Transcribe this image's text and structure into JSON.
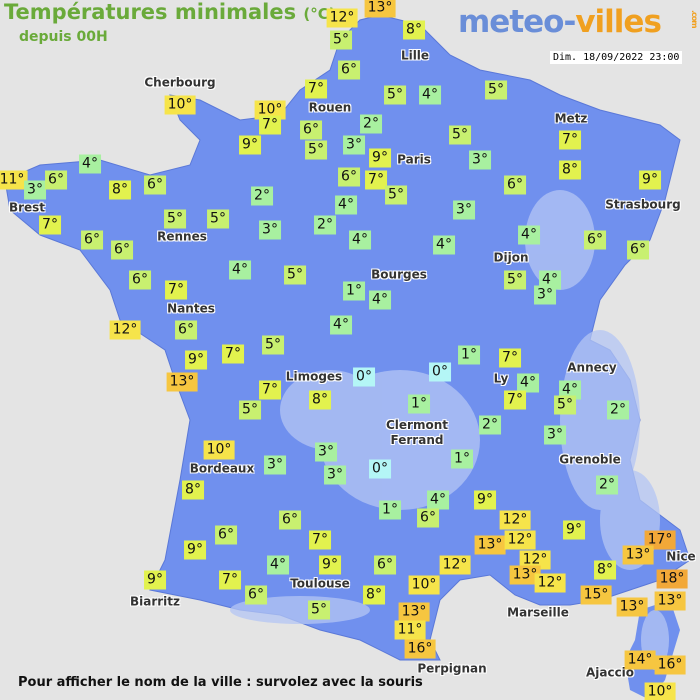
{
  "header": {
    "title": "Températures minimales",
    "unit": "(°C)",
    "subtitle": "depuis 00H",
    "logo": "meteo-villes.com",
    "datetime": "Dim. 18/09/2022 23:00"
  },
  "footer": "Pour afficher le nom de la ville : survolez avec la souris",
  "colors": {
    "land": "#7090ee",
    "sea": "#e4e4e4",
    "0": "#b4f6f6",
    "1-4": "#a8f0a0",
    "5-6": "#c8f070",
    "7-9": "#e2f24e",
    "10-12": "#f6e44a",
    "13-16": "#f6c640",
    "17-18": "#f2a838"
  },
  "cities": [
    "Cherbourg",
    "Lille",
    "Rouen",
    "Paris",
    "Metz",
    "Strasbourg",
    "Brest",
    "Rennes",
    "Nantes",
    "Bourges",
    "Dijon",
    "Limoges",
    "Ly",
    "Annecy",
    "Clermont\nFerrand",
    "Grenoble",
    "Bordeaux",
    "Toulouse",
    "Biarritz",
    "Marseille",
    "Nice",
    "Perpignan",
    "Ajaccio"
  ],
  "readings": [
    12,
    13,
    5,
    8,
    6,
    7,
    5,
    4,
    5,
    10,
    10,
    7,
    6,
    2,
    3,
    9,
    5,
    9,
    5,
    3,
    7,
    8,
    11,
    3,
    6,
    4,
    8,
    6,
    2,
    6,
    7,
    5,
    4,
    6,
    9,
    3,
    7,
    5,
    5,
    3,
    2,
    4,
    4,
    4,
    6,
    6,
    6,
    6,
    4,
    5,
    5,
    4,
    3,
    6,
    7,
    1,
    4,
    12,
    6,
    4,
    5,
    9,
    7,
    1,
    7,
    13,
    0,
    0,
    4,
    4,
    7,
    5,
    7,
    8,
    5,
    1,
    2,
    2,
    3,
    10,
    3,
    1,
    3,
    3,
    0,
    8,
    2,
    4,
    9,
    1,
    6,
    6,
    12,
    9,
    6,
    9,
    7,
    13,
    12,
    17,
    13,
    4,
    9,
    6,
    12,
    12,
    13,
    8,
    18,
    7,
    9,
    10,
    12,
    6,
    8,
    15,
    13,
    13,
    5,
    13,
    11,
    16,
    14,
    16,
    10
  ]
}
